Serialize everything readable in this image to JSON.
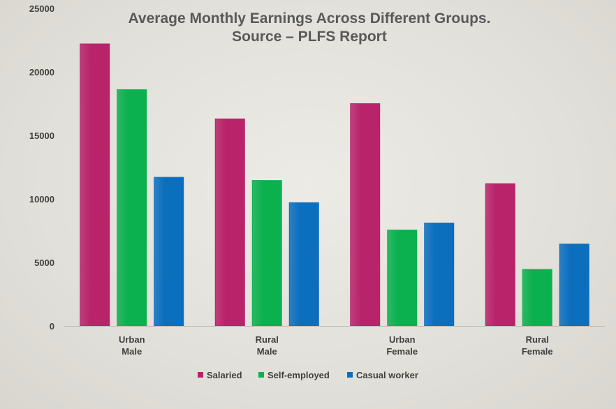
{
  "chart_data": {
    "type": "bar",
    "title_lines": [
      "Average Monthly Earnings Across Different Groups.",
      "Source – PLFS Report"
    ],
    "categories": [
      [
        "Urban",
        "Male"
      ],
      [
        "Rural",
        "Male"
      ],
      [
        "Urban",
        "Female"
      ],
      [
        "Rural",
        "Female"
      ]
    ],
    "series": [
      {
        "name": "Salaried",
        "color": "#b8236a",
        "values": [
          22200,
          16300,
          17500,
          11200
        ]
      },
      {
        "name": "Self-employed",
        "color": "#0bb14f",
        "values": [
          18600,
          11450,
          7550,
          4450
        ]
      },
      {
        "name": "Casual worker",
        "color": "#0b6fbe",
        "values": [
          11700,
          9700,
          8100,
          6450
        ]
      }
    ],
    "ylim": [
      0,
      25000
    ],
    "yticks": [
      0,
      5000,
      10000,
      15000,
      20000,
      25000
    ],
    "grid": false,
    "legend_position": "bottom"
  }
}
